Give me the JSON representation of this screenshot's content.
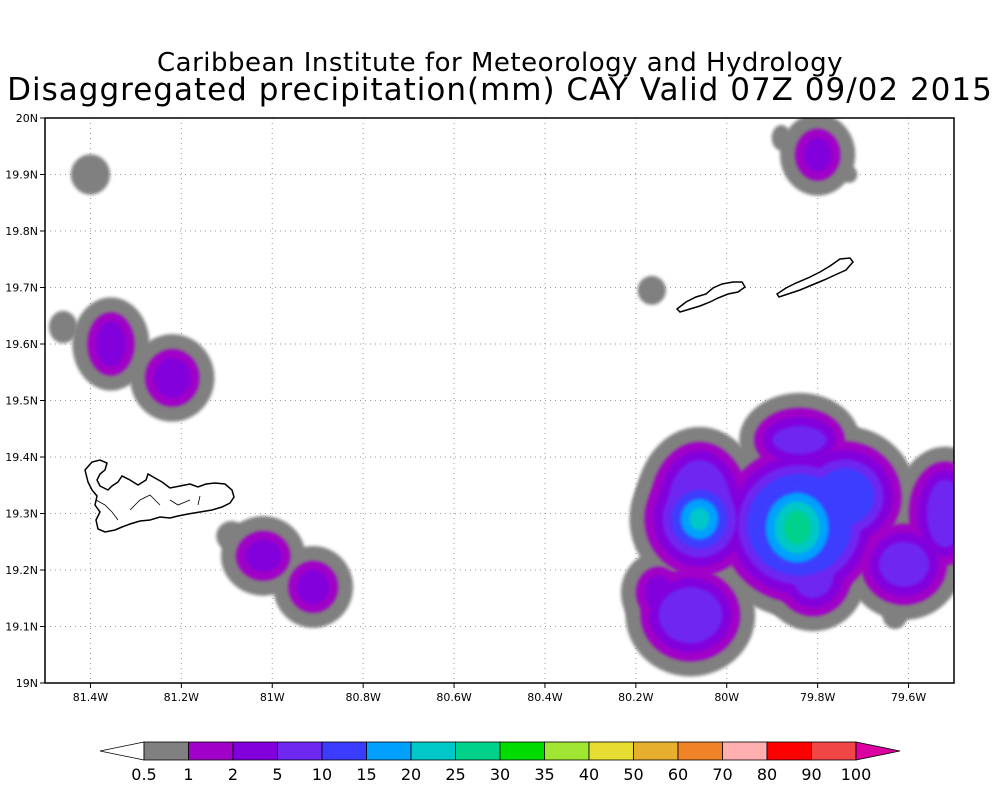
{
  "title": {
    "line1": "Caribbean Institute for Meteorology and Hydrology",
    "line2": "Disaggregated precipitation(mm) CAY Valid 07Z 09/02 2015"
  },
  "map": {
    "lon_range": [
      -81.5,
      -79.5
    ],
    "lat_range": [
      19.0,
      20.0
    ],
    "grid": true,
    "lon_ticks": [
      {
        "value": -81.4,
        "label": "81.4W"
      },
      {
        "value": -81.2,
        "label": "81.2W"
      },
      {
        "value": -81.0,
        "label": "81W"
      },
      {
        "value": -80.8,
        "label": "80.8W"
      },
      {
        "value": -80.6,
        "label": "80.6W"
      },
      {
        "value": -80.4,
        "label": "80.4W"
      },
      {
        "value": -80.2,
        "label": "80.2W"
      },
      {
        "value": -80.0,
        "label": "80W"
      },
      {
        "value": -79.8,
        "label": "79.8W"
      },
      {
        "value": -79.6,
        "label": "79.6W"
      }
    ],
    "lat_ticks": [
      {
        "value": 19.0,
        "label": "19N"
      },
      {
        "value": 19.1,
        "label": "19.1N"
      },
      {
        "value": 19.2,
        "label": "19.2N"
      },
      {
        "value": 19.3,
        "label": "19.3N"
      },
      {
        "value": 19.4,
        "label": "19.4N"
      },
      {
        "value": 19.5,
        "label": "19.5N"
      },
      {
        "value": 19.6,
        "label": "19.6N"
      },
      {
        "value": 19.7,
        "label": "19.7N"
      },
      {
        "value": 19.8,
        "label": "19.8N"
      },
      {
        "value": 19.9,
        "label": "19.9N"
      },
      {
        "value": 20.0,
        "label": "20N"
      }
    ]
  },
  "colorbar": {
    "labels": [
      "0.5",
      "1",
      "2",
      "5",
      "10",
      "15",
      "20",
      "25",
      "30",
      "35",
      "40",
      "50",
      "60",
      "70",
      "80",
      "90",
      "100"
    ],
    "colors": [
      "#ffffff",
      "#808080",
      "#a000c8",
      "#8200dc",
      "#6e28f0",
      "#3c3cff",
      "#00a0ff",
      "#00c8c8",
      "#00d28c",
      "#00dc00",
      "#a0e632",
      "#e6dc32",
      "#e6af2d",
      "#f08228",
      "#ffafaf",
      "#ff0000",
      "#f04646",
      "#dc00a0"
    ]
  },
  "islands_shown": [
    "Grand Cayman",
    "Little Cayman",
    "Cayman Brac"
  ],
  "precip_cells": [
    {
      "lon": -81.4,
      "lat": 19.9,
      "rx": 0.03,
      "ry": 0.025,
      "level": 0
    },
    {
      "lon": -81.46,
      "lat": 19.63,
      "rx": 0.018,
      "ry": 0.018,
      "level": 0
    },
    {
      "lon": -81.355,
      "lat": 19.6,
      "rx": 0.032,
      "ry": 0.04,
      "level": 2
    },
    {
      "lon": -81.22,
      "lat": 19.54,
      "rx": 0.04,
      "ry": 0.035,
      "level": 2
    },
    {
      "lon": -81.09,
      "lat": 19.26,
      "rx": 0.02,
      "ry": 0.016,
      "level": 0
    },
    {
      "lon": -81.02,
      "lat": 19.225,
      "rx": 0.04,
      "ry": 0.028,
      "level": 2
    },
    {
      "lon": -80.91,
      "lat": 19.17,
      "rx": 0.035,
      "ry": 0.03,
      "level": 2
    },
    {
      "lon": -80.165,
      "lat": 19.695,
      "rx": 0.018,
      "ry": 0.015,
      "level": 0
    },
    {
      "lon": -79.88,
      "lat": 19.965,
      "rx": 0.008,
      "ry": 0.012,
      "level": 0
    },
    {
      "lon": -79.8,
      "lat": 19.935,
      "rx": 0.03,
      "ry": 0.03,
      "level": 2
    },
    {
      "lon": -79.73,
      "lat": 19.9,
      "rx": 0.004,
      "ry": 0.004,
      "level": 0
    },
    {
      "lon": -80.08,
      "lat": 19.12,
      "rx": 0.07,
      "ry": 0.05,
      "level": 3
    },
    {
      "lon": -80.15,
      "lat": 19.16,
      "rx": 0.03,
      "ry": 0.03,
      "level": 2
    },
    {
      "lon": -80.06,
      "lat": 19.31,
      "rx": 0.07,
      "ry": 0.085,
      "level": 3
    },
    {
      "lon": -80.06,
      "lat": 19.29,
      "rx": 0.022,
      "ry": 0.02,
      "level": 6
    },
    {
      "lon": -79.84,
      "lat": 19.43,
      "rx": 0.06,
      "ry": 0.025,
      "level": 3
    },
    {
      "lon": -79.84,
      "lat": 19.28,
      "rx": 0.115,
      "ry": 0.09,
      "level": 4
    },
    {
      "lon": -79.845,
      "lat": 19.275,
      "rx": 0.03,
      "ry": 0.03,
      "level": 7
    },
    {
      "lon": -79.74,
      "lat": 19.33,
      "rx": 0.065,
      "ry": 0.05,
      "level": 4
    },
    {
      "lon": -79.81,
      "lat": 19.19,
      "rx": 0.045,
      "ry": 0.04,
      "level": 3
    },
    {
      "lon": -79.61,
      "lat": 19.21,
      "rx": 0.055,
      "ry": 0.04,
      "level": 3
    },
    {
      "lon": -79.52,
      "lat": 19.3,
      "rx": 0.04,
      "ry": 0.06,
      "level": 3
    },
    {
      "lon": -79.945,
      "lat": 19.19,
      "rx": 0.015,
      "ry": 0.01,
      "level": 0
    },
    {
      "lon": -79.63,
      "lat": 19.12,
      "rx": 0.014,
      "ry": 0.014,
      "level": 0
    },
    {
      "lon": -79.71,
      "lat": 19.425,
      "rx": 0.005,
      "ry": 0.005,
      "level": 0
    }
  ]
}
